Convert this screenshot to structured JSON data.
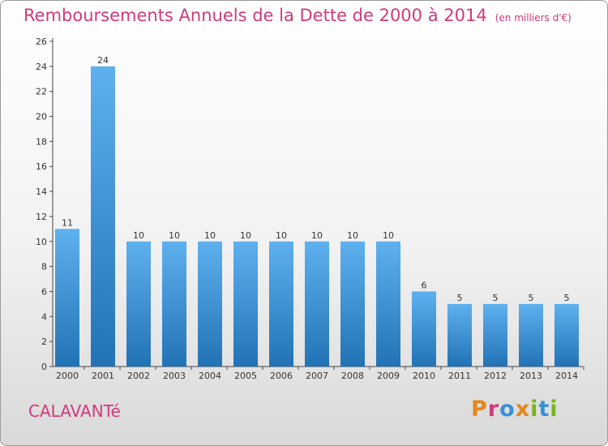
{
  "chart_data": {
    "type": "bar",
    "title": "Remboursements Annuels de la Dette de 2000 à 2014",
    "unit_note": "(en milliers d'€)",
    "categories": [
      "2000",
      "2001",
      "2002",
      "2003",
      "2004",
      "2005",
      "2006",
      "2007",
      "2008",
      "2009",
      "2010",
      "2011",
      "2012",
      "2013",
      "2014"
    ],
    "values": [
      11,
      24,
      10,
      10,
      10,
      10,
      10,
      10,
      10,
      10,
      6,
      5,
      5,
      5,
      5
    ],
    "ylim": [
      0,
      26
    ],
    "yticks": [
      0,
      2,
      4,
      6,
      8,
      10,
      12,
      14,
      16,
      18,
      20,
      22,
      24,
      26
    ],
    "xlabel": "",
    "ylabel": "",
    "grid": false,
    "data_labels": true,
    "bar_color_top": "#5eb0ee",
    "bar_color_bottom": "#2273b5"
  },
  "footer": {
    "place_name": "CALAVANTé",
    "logo_text": "Proxiti"
  },
  "colors": {
    "title": "#d03a7c",
    "logo_letters": [
      "#e6871d",
      "#d03a7c",
      "#3a8fd6",
      "#e6871d",
      "#7ab51d",
      "#3a8fd6",
      "#7ab51d"
    ]
  }
}
